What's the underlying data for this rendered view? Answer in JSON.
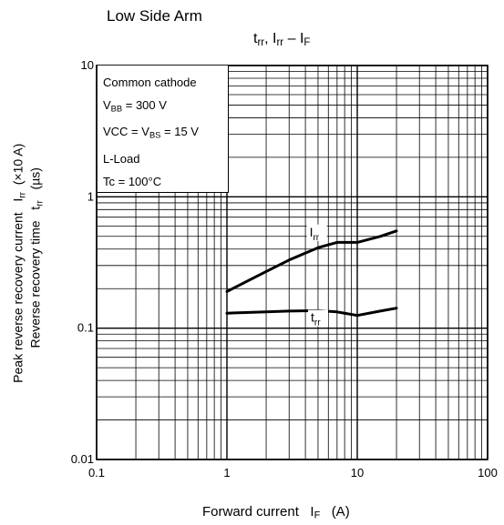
{
  "header": "Low Side Arm",
  "chart_data": {
    "type": "line",
    "title": {
      "t": "t",
      "t_sub": "rr",
      "sep1": ", ",
      "i": "I",
      "i_sub": "rr",
      "sep2": " – ",
      "f": "I",
      "f_sub": "F"
    },
    "x_scale": "log",
    "y_scale": "log",
    "xlim": [
      0.1,
      100
    ],
    "ylim": [
      0.01,
      10
    ],
    "x_ticks": [
      "0.1",
      "1",
      "10",
      "100"
    ],
    "y_ticks": [
      "10",
      "1",
      "0.1",
      "0.01"
    ],
    "xlabel": {
      "text": "Forward current",
      "sym": "I",
      "sub": "F",
      "unit": "(A)"
    },
    "ylabel_outer": {
      "text": "Peak reverse recovery current",
      "sym": "I",
      "sub": "rr",
      "unit": "(×10 A)"
    },
    "ylabel_inner": {
      "text": "Reverse recovery time",
      "sym": "t",
      "sub": "rr",
      "unit": "(µs)"
    },
    "grid": true,
    "conditions": [
      {
        "pre": "Common cathode",
        "sub": "",
        "post": ""
      },
      {
        "pre": "V",
        "sub": "BB",
        "post": " = 300 V"
      },
      {
        "pre": "VCC = V",
        "sub": "BS",
        "post": " = 15 V"
      },
      {
        "pre": "L-Load",
        "sub": "",
        "post": ""
      },
      {
        "pre": "Tc = 100°C",
        "sub": "",
        "post": ""
      }
    ],
    "series": [
      {
        "name": "I",
        "name_sub": "rr",
        "x": [
          1,
          2,
          3,
          5,
          7,
          10,
          15,
          20
        ],
        "y": [
          0.19,
          0.27,
          0.33,
          0.41,
          0.45,
          0.45,
          0.5,
          0.55
        ]
      },
      {
        "name": "t",
        "name_sub": "rr",
        "x": [
          1,
          2,
          3,
          5,
          7,
          10,
          15,
          20
        ],
        "y": [
          0.13,
          0.133,
          0.135,
          0.136,
          0.133,
          0.125,
          0.135,
          0.142
        ]
      }
    ]
  }
}
